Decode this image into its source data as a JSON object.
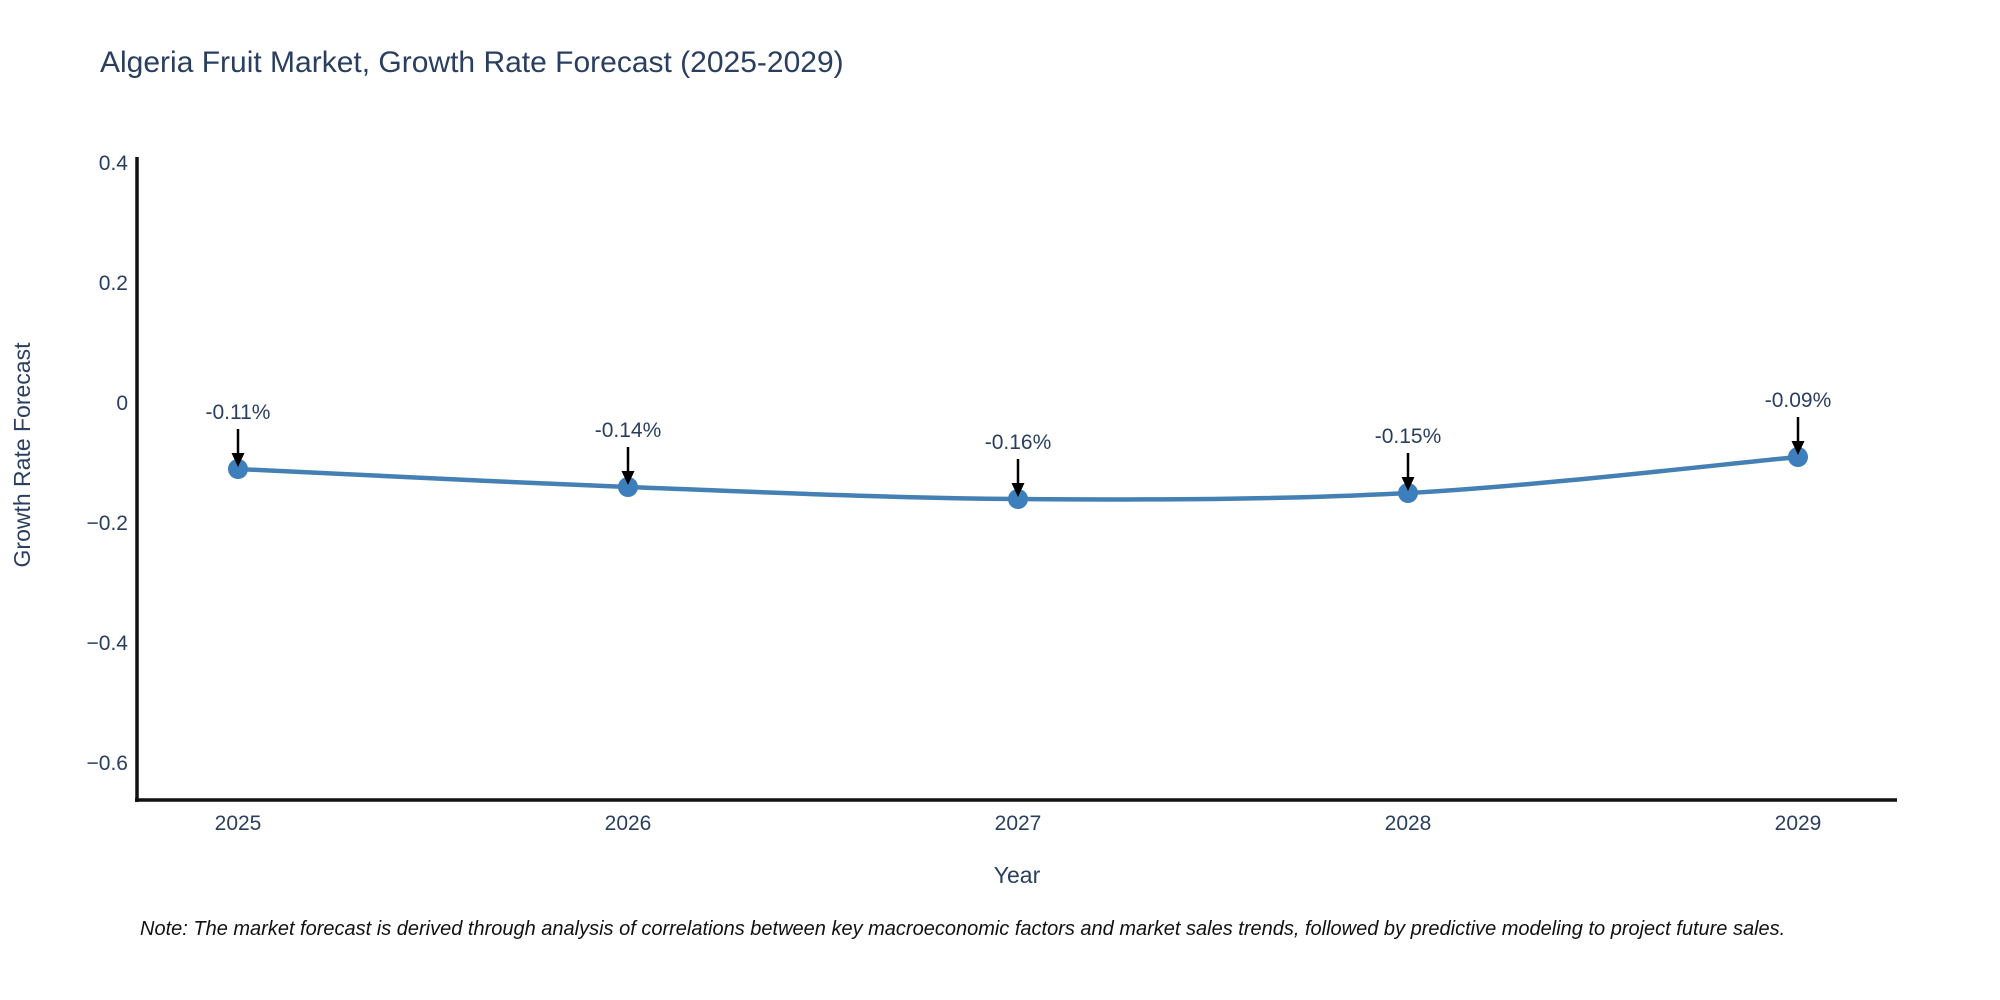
{
  "title": "Algeria Fruit Market, Growth Rate Forecast (2025-2029)",
  "note": "Note: The market forecast is derived through analysis of correlations between key macroeconomic factors and market sales trends, followed by predictive modeling to project future sales.",
  "chart_data": {
    "type": "line",
    "title": "Algeria Fruit Market, Growth Rate Forecast (2025-2029)",
    "xlabel": "Year",
    "ylabel": "Growth Rate Forecast",
    "categories": [
      "2025",
      "2026",
      "2027",
      "2028",
      "2029"
    ],
    "values": [
      -0.11,
      -0.14,
      -0.16,
      -0.15,
      -0.09
    ],
    "point_labels": [
      "-0.11%",
      "-0.14%",
      "-0.16%",
      "-0.15%",
      "-0.09%"
    ],
    "ytick_values": [
      0.4,
      0.2,
      0,
      -0.2,
      -0.4,
      -0.6
    ],
    "ytick_labels": [
      "0.4",
      "0.2",
      "0",
      "−0.2",
      "−0.4",
      "−0.6"
    ],
    "ylim": [
      -0.67,
      0.405
    ],
    "grid": "off",
    "legend": "none",
    "line_shape": "spline",
    "colors": {
      "line": "#4580b4",
      "marker": "#3d7ebc",
      "axis": "#111111",
      "tick_text": "#2a3f5f",
      "annotation_text": "#2a3f5f",
      "arrow": "#000000"
    }
  }
}
